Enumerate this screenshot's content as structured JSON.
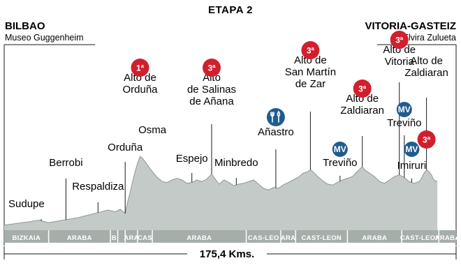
{
  "title": "ETAPA 2",
  "start": {
    "city": "BILBAO",
    "place": "Museo Guggenheim"
  },
  "finish": {
    "city": "VITORIA-GASTEIZ",
    "place": "Elvira Zulueta"
  },
  "distance_label": "175,4 Kms.",
  "colors": {
    "profile": "#c4cac7",
    "profile_edge": "#8f9793",
    "region_band": "#a6aeaa",
    "climb_badge": "#d11f2d",
    "sprint_badge": "#1f5c8f",
    "text": "#1a1a1a"
  },
  "chart_data": {
    "type": "area",
    "title": "ETAPA 2",
    "xlabel": "175,4 Kms.",
    "ylabel": "",
    "grid": false,
    "profile_note": "relative elevation 0-100",
    "profile": [
      [
        0,
        6
      ],
      [
        5,
        8
      ],
      [
        10,
        10
      ],
      [
        14,
        12
      ],
      [
        18,
        9
      ],
      [
        22,
        11
      ],
      [
        26,
        13
      ],
      [
        30,
        15
      ],
      [
        34,
        18
      ],
      [
        38,
        21
      ],
      [
        42,
        24
      ],
      [
        45,
        22
      ],
      [
        47,
        25
      ],
      [
        49,
        20
      ],
      [
        50,
        34
      ],
      [
        51,
        45
      ],
      [
        52,
        58
      ],
      [
        53,
        70
      ],
      [
        54,
        80
      ],
      [
        55,
        88
      ],
      [
        56,
        86
      ],
      [
        58,
        78
      ],
      [
        60,
        70
      ],
      [
        62,
        63
      ],
      [
        64,
        58
      ],
      [
        66,
        57
      ],
      [
        68,
        60
      ],
      [
        70,
        62
      ],
      [
        72,
        60
      ],
      [
        74,
        56
      ],
      [
        76,
        57
      ],
      [
        78,
        60
      ],
      [
        80,
        58
      ],
      [
        82,
        61
      ],
      [
        84,
        67
      ],
      [
        85,
        63
      ],
      [
        87,
        55
      ],
      [
        89,
        60
      ],
      [
        91,
        57
      ],
      [
        93,
        53
      ],
      [
        95,
        55
      ],
      [
        97,
        56
      ],
      [
        99,
        58
      ],
      [
        101,
        60
      ],
      [
        103,
        55
      ],
      [
        105,
        50
      ],
      [
        107,
        48
      ],
      [
        109,
        51
      ],
      [
        111,
        50
      ],
      [
        113,
        54
      ],
      [
        115,
        57
      ],
      [
        117,
        60
      ],
      [
        119,
        63
      ],
      [
        121,
        68
      ],
      [
        123,
        70
      ],
      [
        124,
        72
      ],
      [
        125,
        70
      ],
      [
        127,
        64
      ],
      [
        129,
        59
      ],
      [
        131,
        55
      ],
      [
        133,
        54
      ],
      [
        135,
        57
      ],
      [
        137,
        60
      ],
      [
        139,
        62
      ],
      [
        140,
        63
      ],
      [
        141,
        64
      ],
      [
        142,
        67
      ],
      [
        143,
        70
      ],
      [
        144,
        73
      ],
      [
        145,
        76
      ],
      [
        146,
        72
      ],
      [
        148,
        68
      ],
      [
        150,
        64
      ],
      [
        151,
        61
      ],
      [
        152,
        58
      ],
      [
        154,
        56
      ],
      [
        156,
        60
      ],
      [
        158,
        64
      ],
      [
        160,
        66
      ],
      [
        162,
        63
      ],
      [
        164,
        58
      ],
      [
        166,
        56
      ],
      [
        168,
        58
      ],
      [
        169,
        62
      ],
      [
        170,
        68
      ],
      [
        171,
        72
      ],
      [
        172,
        70
      ],
      [
        173,
        66
      ],
      [
        174,
        60
      ],
      [
        175.4,
        58
      ]
    ],
    "points": [
      {
        "km": 15,
        "label": "Sudupe"
      },
      {
        "km": 25,
        "label": "Berrobi"
      },
      {
        "km": 38,
        "label": "Respaldiza"
      },
      {
        "km": 49,
        "label": "Orduña"
      },
      {
        "km": 55,
        "label": "Alto de\nOrduña",
        "badge": "1ª",
        "type": "climb"
      },
      {
        "km": 60,
        "label": "Osma"
      },
      {
        "km": 76,
        "label": "Espejo"
      },
      {
        "km": 84,
        "label": "Alto\nde Salinas\nde Añana",
        "badge": "3ª",
        "type": "climb"
      },
      {
        "km": 94,
        "label": "Minbredo"
      },
      {
        "km": 110,
        "label": "Añastro",
        "badge": "",
        "type": "food"
      },
      {
        "km": 124,
        "label": "Alto de\nSan Martín\nde Zar",
        "badge": "3ª",
        "type": "climb"
      },
      {
        "km": 136,
        "label": "Treviño",
        "badge": "MV",
        "type": "sprint"
      },
      {
        "km": 145,
        "label": "Alto de\nZaldiaran",
        "badge": "3ª",
        "type": "climb"
      },
      {
        "km": 160,
        "label": "Alto de\nVitoria",
        "badge": "3ª",
        "type": "climb"
      },
      {
        "km": 162,
        "label": "Treviño",
        "badge": "MV",
        "type": "sprint"
      },
      {
        "km": 165,
        "label": "Imiruri",
        "badge": "MV",
        "type": "sprint"
      },
      {
        "km": 171,
        "label": "Alto de\nZaldiaran",
        "badge": "3ª",
        "type": "climb"
      }
    ],
    "regions": [
      {
        "from": 0,
        "to": 18,
        "label": "BIZKAIA"
      },
      {
        "from": 18,
        "to": 43,
        "label": "ARABA"
      },
      {
        "from": 43,
        "to": 46,
        "label": "B"
      },
      {
        "from": 46,
        "to": 49,
        "label": ""
      },
      {
        "from": 49,
        "to": 54,
        "label": "ARA"
      },
      {
        "from": 54,
        "to": 60,
        "label": "CAS"
      },
      {
        "from": 60,
        "to": 98,
        "label": "ARABA"
      },
      {
        "from": 98,
        "to": 112,
        "label": "CAS-LEO"
      },
      {
        "from": 112,
        "to": 118,
        "label": "ARA"
      },
      {
        "from": 118,
        "to": 139,
        "label": "CAST-LEON"
      },
      {
        "from": 139,
        "to": 161,
        "label": "ARABA"
      },
      {
        "from": 161,
        "to": 176,
        "label": "CAST-LEON"
      },
      {
        "from": 176,
        "to": 183,
        "label": "ARABA"
      }
    ],
    "xlim": [
      0,
      183
    ],
    "ylim": [
      0,
      100
    ]
  }
}
